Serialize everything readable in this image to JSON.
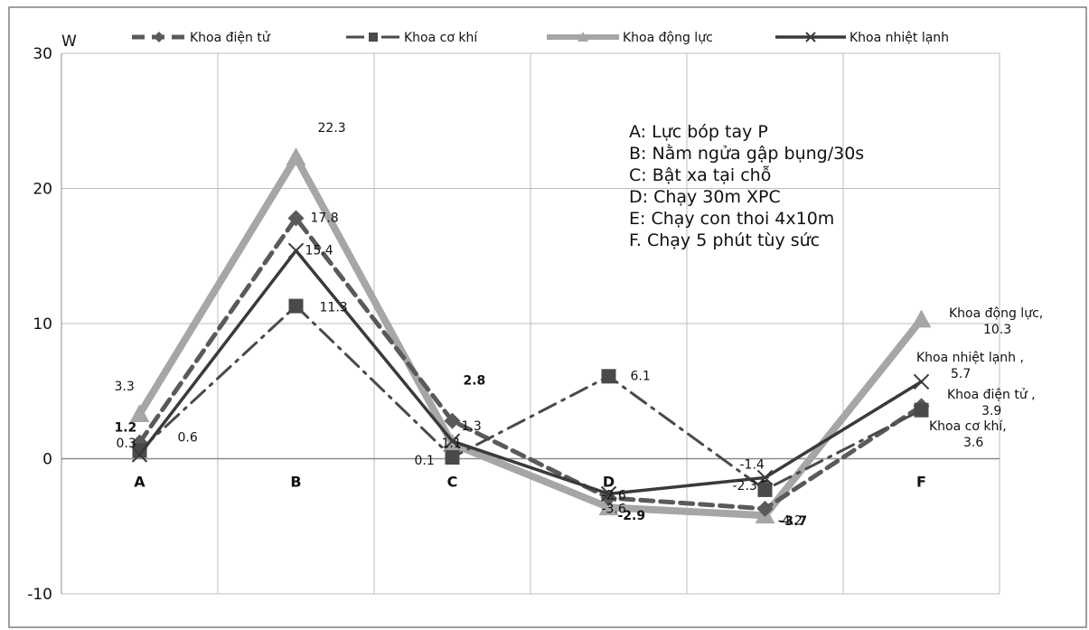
{
  "chart_data": {
    "type": "line",
    "ylabel": "W",
    "ylim": [
      -10,
      30
    ],
    "yticks": [
      "30",
      "20",
      "10",
      "0",
      "-10"
    ],
    "categories": [
      "A",
      "B",
      "C",
      "D",
      "E",
      "F"
    ],
    "grid": true,
    "legend_position": "top",
    "series": [
      {
        "name": "Khoa điện tử",
        "style": "dashed",
        "marker": "diamond",
        "color": "#5a5a5a",
        "values": [
          1.2,
          17.8,
          2.8,
          -2.9,
          -3.7,
          3.9
        ],
        "labels": [
          "1.2",
          "17.8",
          "2.8",
          "-2.9",
          "-3.7",
          "Khoa điện tử ,\n3.9"
        ]
      },
      {
        "name": "Khoa cơ khí",
        "style": "dash-dot",
        "marker": "square",
        "color": "#4a4a4a",
        "values": [
          0.6,
          11.3,
          0.1,
          6.1,
          -2.3,
          3.6
        ],
        "labels": [
          "0.6",
          "11.3",
          "0.1",
          "6.1",
          "-2.3",
          "Khoa cơ khí,\n3.6"
        ]
      },
      {
        "name": "Khoa động lực",
        "style": "solid-thick",
        "marker": "triangle",
        "color": "#a6a6a6",
        "values": [
          3.3,
          22.3,
          1.1,
          -3.6,
          -4.2,
          10.3
        ],
        "labels": [
          "3.3",
          "22.3",
          "1.1",
          "-3.6",
          "-4.2",
          "Khoa động lực,\n10.3"
        ]
      },
      {
        "name": "Khoa nhiệt lạnh",
        "style": "solid",
        "marker": "x",
        "color": "#3a3a3a",
        "values": [
          0.3,
          15.4,
          1.3,
          -2.6,
          -1.4,
          5.7
        ],
        "labels": [
          "0.3",
          "15.4",
          "1.3",
          "-2.6",
          "-1.4",
          "Khoa nhiệt lạnh ,\n5.7"
        ]
      }
    ],
    "annotations": [
      "A: Lực bóp tay P",
      "B: Nằm ngửa gập bụng/30s",
      "C: Bật xa tại chỗ",
      "D: Chạy 30m XPC",
      "E: Chạy con thoi 4x10m",
      "F. Chạy 5 phút tùy sức"
    ]
  }
}
